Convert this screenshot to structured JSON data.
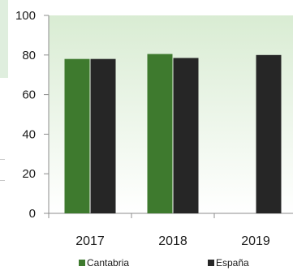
{
  "chart_data": {
    "type": "bar",
    "categories": [
      "2017",
      "2018",
      "2019"
    ],
    "series": [
      {
        "name": "Cantabria",
        "values": [
          78,
          80.5,
          null
        ],
        "color": "#3e7a2e"
      },
      {
        "name": "España",
        "values": [
          78,
          78.5,
          80
        ],
        "color": "#262626"
      }
    ],
    "ylim": [
      0,
      100
    ],
    "yticks": [
      0,
      20,
      40,
      60,
      80,
      100
    ],
    "grid": false,
    "legend": "bottom",
    "plot_background": {
      "top": "#d9ecd3",
      "bottom": "#ffffff"
    }
  }
}
